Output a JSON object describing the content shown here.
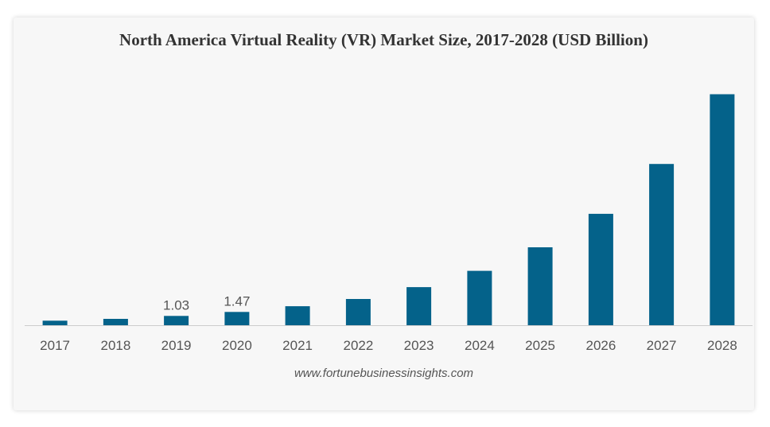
{
  "chart_data": {
    "type": "bar",
    "title": "North America Virtual Reality (VR) Market Size, 2017-2028 (USD Billion)",
    "xlabel": "",
    "ylabel": "",
    "categories": [
      "2017",
      "2018",
      "2019",
      "2020",
      "2021",
      "2022",
      "2023",
      "2024",
      "2025",
      "2026",
      "2027",
      "2028"
    ],
    "values": [
      0.5,
      0.7,
      1.03,
      1.47,
      2.1,
      2.9,
      4.2,
      6.0,
      8.6,
      12.3,
      17.8,
      25.5
    ],
    "data_labels": [
      "",
      "",
      "1.03",
      "1.47",
      "",
      "",
      "",
      "",
      "",
      "",
      "",
      ""
    ],
    "ylim": [
      0,
      28.7
    ],
    "grid": false,
    "legend": "none",
    "colors": {
      "bar": "#04628a",
      "baseline": "#cccccc"
    }
  },
  "source": "www.fortunebusinessinsights.com"
}
